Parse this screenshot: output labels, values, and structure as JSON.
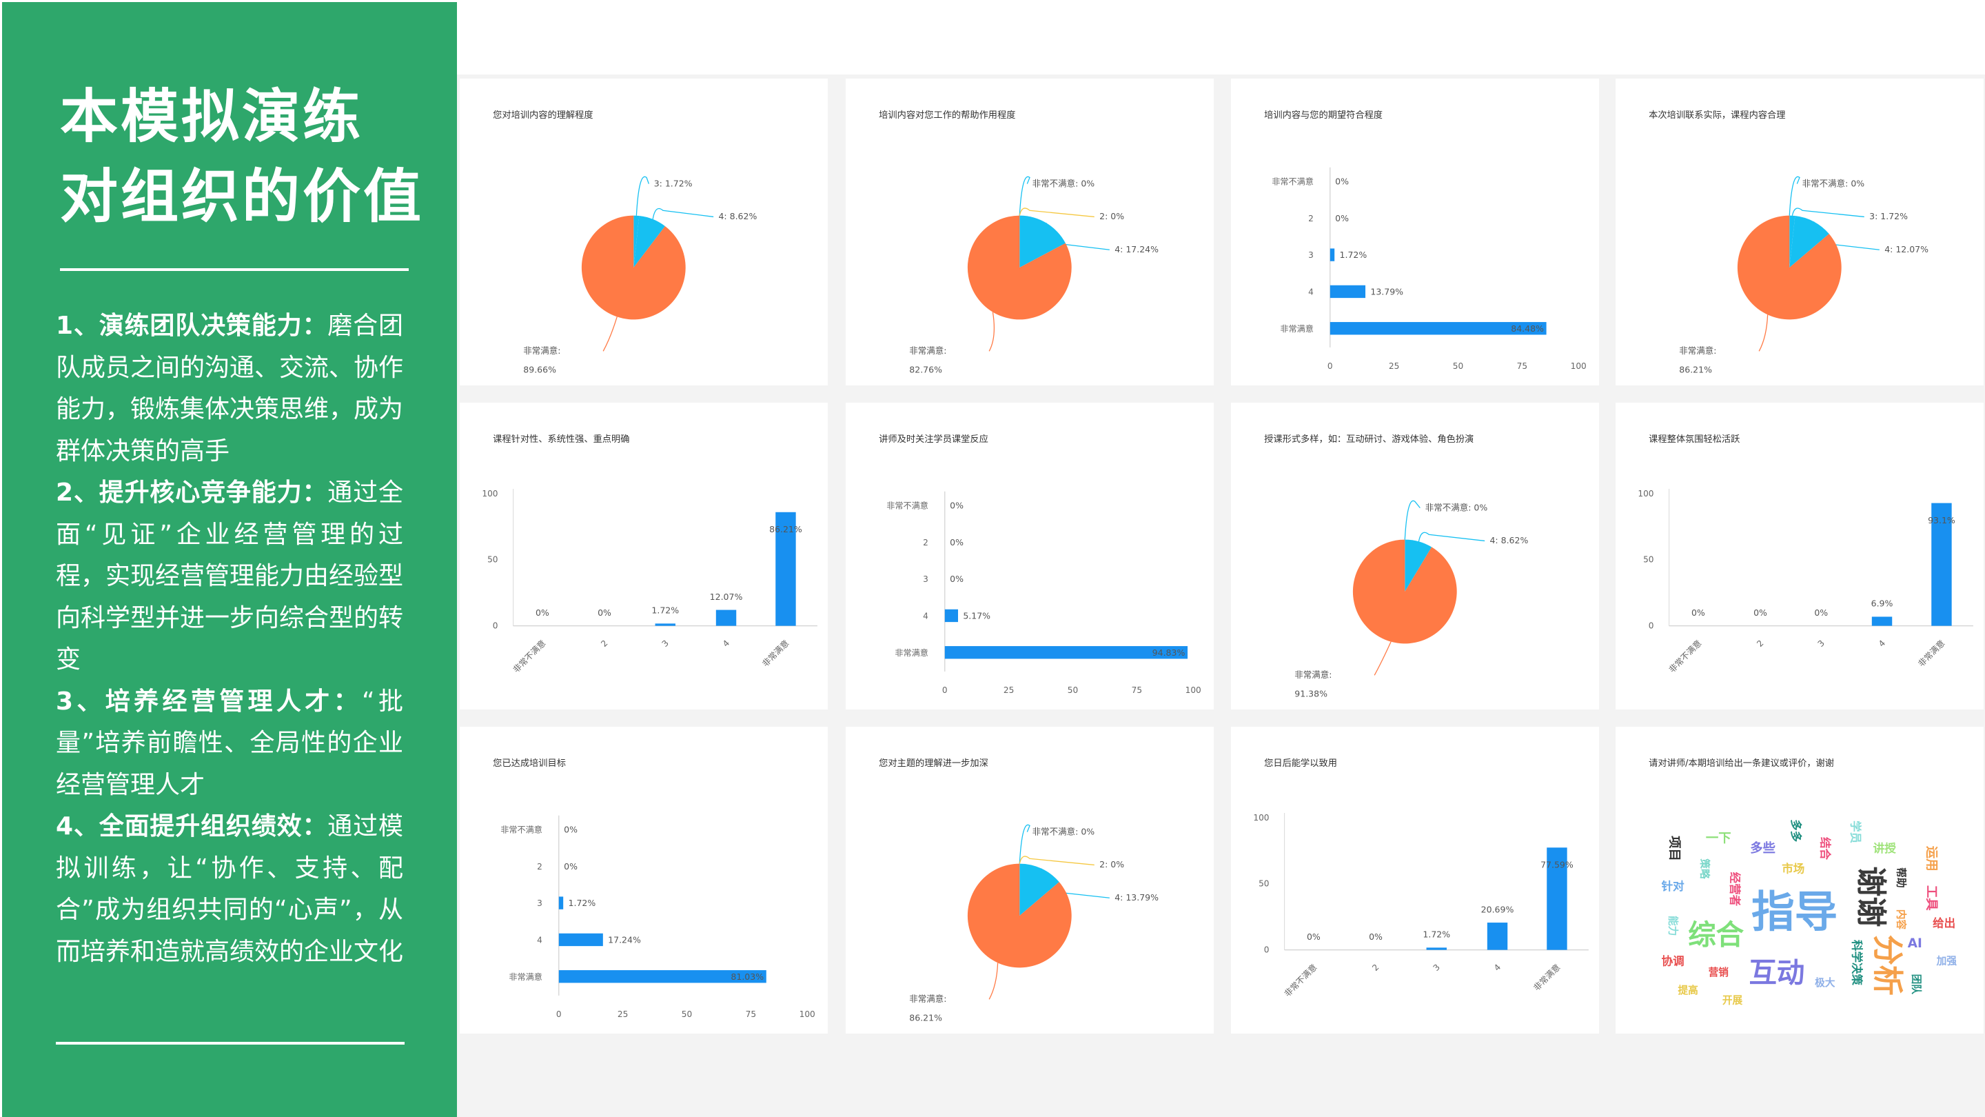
{
  "panel": {
    "title": "本模拟演练\n对组织的价值",
    "points": [
      {
        "heading": "1、演练团队决策能力：",
        "text": "磨合团队成员之间的沟通、交流、协作能力，锻炼集体决策思维，成为群体决策的高手"
      },
      {
        "heading": "2、提升核心竞争能力：",
        "text": "通过全面“见证”企业经营管理的过程，实现经营管理能力由经验型向科学型并进一步向综合型的转变"
      },
      {
        "heading": "3、培养经营管理人才：",
        "text": "“批量”培养前瞻性、全局性的企业经营管理人才"
      },
      {
        "heading": "4、全面提升组织绩效：",
        "text": "通过模拟训练，让“协作、支持、配合”成为组织共同的“心声”，从而培养和造就高绩效的企业文化"
      }
    ],
    "background_color": "#2ea76b"
  },
  "colors": {
    "bar": "#1890f0",
    "pie_major": "#ff7a45",
    "pie_minor": "#16c0f2"
  },
  "chart_data": [
    {
      "type": "pie",
      "title": "您对培训内容的理解程度",
      "slices": [
        {
          "name": "3",
          "value": 1.72,
          "label": "3: 1.72%"
        },
        {
          "name": "4",
          "value": 8.62,
          "label": "4: 8.62%"
        },
        {
          "name": "非常满意",
          "value": 89.66,
          "label": "非常满意:",
          "label2": "89.66%"
        }
      ]
    },
    {
      "type": "pie",
      "title": "培训内容对您工作的帮助作用程度",
      "slices": [
        {
          "name": "非常不满意",
          "value": 0,
          "label": "非常不满意: 0%"
        },
        {
          "name": "2",
          "value": 0,
          "label": "2: 0%"
        },
        {
          "name": "4",
          "value": 17.24,
          "label": "4: 17.24%"
        },
        {
          "name": "非常满意",
          "value": 82.76,
          "label": "非常满意:",
          "label2": "82.76%"
        }
      ]
    },
    {
      "type": "hbar",
      "title": "培训内容与您的期望符合程度",
      "categories": [
        "非常不满意",
        "2",
        "3",
        "4",
        "非常满意"
      ],
      "values": [
        0,
        0,
        1.72,
        13.79,
        84.48
      ],
      "labels": [
        "0%",
        "0%",
        "1.72%",
        "13.79%",
        "84.48%"
      ],
      "ticks": [
        "0",
        "25",
        "50",
        "75",
        "100"
      ],
      "xlim": [
        0,
        100
      ]
    },
    {
      "type": "pie",
      "title": "本次培训联系实际，课程内容合理",
      "slices": [
        {
          "name": "非常不满意",
          "value": 0,
          "label": "非常不满意: 0%"
        },
        {
          "name": "3",
          "value": 1.72,
          "label": "3: 1.72%"
        },
        {
          "name": "4",
          "value": 12.07,
          "label": "4: 12.07%"
        },
        {
          "name": "非常满意",
          "value": 86.21,
          "label": "非常满意:",
          "label2": "86.21%"
        }
      ]
    },
    {
      "type": "vbar",
      "title": "课程针对性、系统性强、重点明确",
      "categories": [
        "非常不满意",
        "2",
        "3",
        "4",
        "非常满意"
      ],
      "values": [
        0,
        0,
        1.72,
        12.07,
        86.21
      ],
      "labels": [
        "0%",
        "0%",
        "1.72%",
        "12.07%",
        "86.21%"
      ],
      "ticks": [
        "0",
        "50",
        "100"
      ],
      "ylim": [
        0,
        100
      ]
    },
    {
      "type": "hbar",
      "title": "讲师及时关注学员课堂反应",
      "categories": [
        "非常不满意",
        "2",
        "3",
        "4",
        "非常满意"
      ],
      "values": [
        0,
        0,
        0,
        5.17,
        94.83
      ],
      "labels": [
        "0%",
        "0%",
        "0%",
        "5.17%",
        "94.83%"
      ],
      "ticks": [
        "0",
        "25",
        "50",
        "75",
        "100"
      ],
      "xlim": [
        0,
        100
      ]
    },
    {
      "type": "pie",
      "title": "授课形式多样，如：互动研讨、游戏体验、角色扮演",
      "slices": [
        {
          "name": "非常不满意",
          "value": 0,
          "label": "非常不满意: 0%"
        },
        {
          "name": "4",
          "value": 8.62,
          "label": "4: 8.62%"
        },
        {
          "name": "非常满意",
          "value": 91.38,
          "label": "非常满意:",
          "label2": "91.38%"
        }
      ]
    },
    {
      "type": "vbar",
      "title": "课程整体氛围轻松活跃",
      "categories": [
        "非常不满意",
        "2",
        "3",
        "4",
        "非常满意"
      ],
      "values": [
        0,
        0,
        0,
        6.9,
        93.1
      ],
      "labels": [
        "0%",
        "0%",
        "0%",
        "6.9%",
        "93.1%"
      ],
      "ticks": [
        "0",
        "50",
        "100"
      ],
      "ylim": [
        0,
        100
      ]
    },
    {
      "type": "hbar",
      "title": "您已达成培训目标",
      "categories": [
        "非常不满意",
        "2",
        "3",
        "4",
        "非常满意"
      ],
      "values": [
        0,
        0,
        1.72,
        17.24,
        81.03
      ],
      "labels": [
        "0%",
        "0%",
        "1.72%",
        "17.24%",
        "81.03%"
      ],
      "ticks": [
        "0",
        "25",
        "50",
        "75",
        "100"
      ],
      "xlim": [
        0,
        100
      ]
    },
    {
      "type": "pie",
      "title": "您对主题的理解进一步加深",
      "slices": [
        {
          "name": "非常不满意",
          "value": 0,
          "label": "非常不满意: 0%"
        },
        {
          "name": "2",
          "value": 0,
          "label": "2: 0%"
        },
        {
          "name": "4",
          "value": 13.79,
          "label": "4: 13.79%"
        },
        {
          "name": "非常满意",
          "value": 86.21,
          "label": "非常满意:",
          "label2": "86.21%"
        }
      ]
    },
    {
      "type": "vbar",
      "title": "您日后能学以致用",
      "categories": [
        "非常不满意",
        "2",
        "3",
        "4",
        "非常满意"
      ],
      "values": [
        0,
        0,
        1.72,
        20.69,
        77.59
      ],
      "labels": [
        "0%",
        "0%",
        "1.72%",
        "20.69%",
        "77.59%"
      ],
      "ticks": [
        "0",
        "50",
        "100"
      ],
      "ylim": [
        0,
        100
      ]
    },
    {
      "type": "wordcloud",
      "title": "请对讲师/本期培训给出一条建议或评价，谢谢",
      "words": [
        {
          "text": "指导",
          "color": "#6aa9e9"
        },
        {
          "text": "综合",
          "color": "#7ee07a"
        },
        {
          "text": "互动",
          "color": "#7b78e0"
        },
        {
          "text": "谢谢",
          "color": "#3b3b3b"
        },
        {
          "text": "分析",
          "color": "#f5a04a"
        },
        {
          "text": "项目",
          "color": "#333333"
        },
        {
          "text": "一下",
          "color": "#8ee07a"
        },
        {
          "text": "多些",
          "color": "#7b78e0"
        },
        {
          "text": "多多",
          "color": "#1f8f80"
        },
        {
          "text": "结合",
          "color": "#ee4f7d"
        },
        {
          "text": "学员",
          "color": "#86dcd8"
        },
        {
          "text": "讲授",
          "color": "#9fe37a"
        },
        {
          "text": "运用",
          "color": "#f5a04a"
        },
        {
          "text": "策略",
          "color": "#78d6c8"
        },
        {
          "text": "市场",
          "color": "#e8c94a"
        },
        {
          "text": "经营者",
          "color": "#ee4f7d"
        },
        {
          "text": "帮助",
          "color": "#333333"
        },
        {
          "text": "针对",
          "color": "#6aa9e9"
        },
        {
          "text": "工具",
          "color": "#ee4f7d"
        },
        {
          "text": "内容",
          "color": "#f5a04a"
        },
        {
          "text": "给出",
          "color": "#e84f4f"
        },
        {
          "text": "能力",
          "color": "#86dcd8"
        },
        {
          "text": "AI",
          "color": "#7b78e0"
        },
        {
          "text": "科学决策",
          "color": "#1f8f80"
        },
        {
          "text": "协调",
          "color": "#e84f4f"
        },
        {
          "text": "营销",
          "color": "#e84f4f"
        },
        {
          "text": "加强",
          "color": "#8fb0e8"
        },
        {
          "text": "团队",
          "color": "#1f8f80"
        },
        {
          "text": "极大",
          "color": "#8fb0e8"
        },
        {
          "text": "提高",
          "color": "#e8c94a"
        },
        {
          "text": "开展",
          "color": "#e8c94a"
        }
      ]
    }
  ]
}
